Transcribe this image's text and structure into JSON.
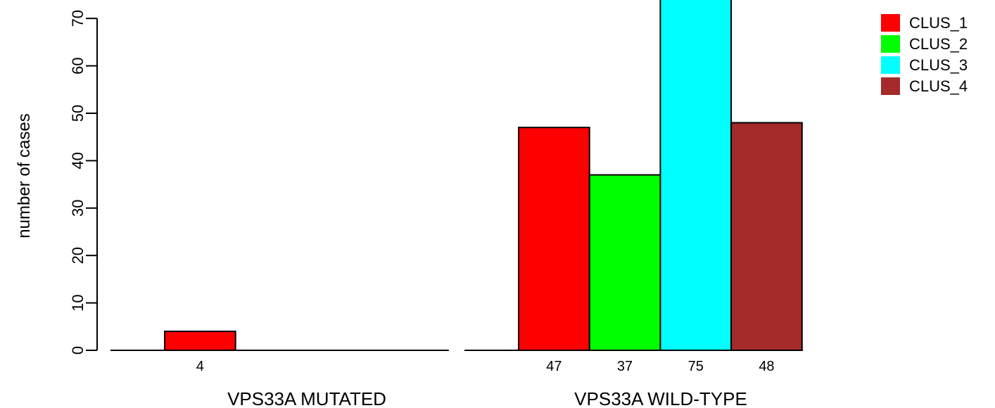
{
  "chart_data": {
    "type": "bar",
    "ylabel": "number of cases",
    "xlabel": "",
    "ylim": [
      0,
      75
    ],
    "yticks": [
      0,
      10,
      20,
      30,
      40,
      50,
      60,
      70
    ],
    "grid": false,
    "legend_position": "top-right",
    "categories": [
      "VPS33A MUTATED",
      "VPS33A WILD-TYPE"
    ],
    "series": [
      {
        "name": "CLUS_1",
        "color": "#ff0000",
        "values": [
          4,
          47
        ],
        "labels": [
          "4",
          "47"
        ]
      },
      {
        "name": "CLUS_2",
        "color": "#00ff00",
        "values": [
          0,
          37
        ],
        "labels": [
          "",
          "37"
        ]
      },
      {
        "name": "CLUS_3",
        "color": "#00ffff",
        "values": [
          0,
          75
        ],
        "labels": [
          "",
          "75"
        ]
      },
      {
        "name": "CLUS_4",
        "color": "#a52a2a",
        "values": [
          0,
          48
        ],
        "labels": [
          "",
          "48"
        ]
      }
    ]
  }
}
